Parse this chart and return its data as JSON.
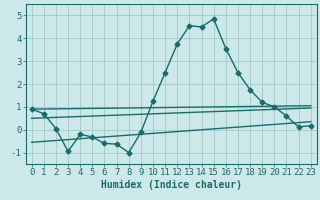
{
  "xlabel": "Humidex (Indice chaleur)",
  "bg_color": "#cce8e8",
  "grid_color": "#aacccc",
  "line_color": "#1a6b6b",
  "xlim": [
    -0.5,
    23.5
  ],
  "ylim": [
    -1.5,
    5.5
  ],
  "xticks": [
    0,
    1,
    2,
    3,
    4,
    5,
    6,
    7,
    8,
    9,
    10,
    11,
    12,
    13,
    14,
    15,
    16,
    17,
    18,
    19,
    20,
    21,
    22,
    23
  ],
  "yticks": [
    -1,
    0,
    1,
    2,
    3,
    4,
    5
  ],
  "main_x": [
    0,
    1,
    2,
    3,
    4,
    5,
    6,
    7,
    8,
    9,
    10,
    11,
    12,
    13,
    14,
    15,
    16,
    17,
    18,
    19,
    20,
    21,
    22,
    23
  ],
  "main_y": [
    0.9,
    0.7,
    0.05,
    -0.95,
    -0.2,
    -0.32,
    -0.6,
    -0.63,
    -1.0,
    -0.12,
    1.25,
    2.5,
    3.75,
    4.55,
    4.5,
    4.85,
    3.55,
    2.5,
    1.75,
    1.2,
    1.0,
    0.6,
    0.12,
    0.18
  ],
  "line1_x": [
    0,
    23
  ],
  "line1_y": [
    0.9,
    1.05
  ],
  "line2_x": [
    0,
    23
  ],
  "line2_y": [
    0.5,
    0.95
  ],
  "line3_x": [
    0,
    23
  ],
  "line3_y": [
    -0.55,
    0.35
  ],
  "marker_size": 2.5,
  "line_width": 1.0,
  "tick_fontsize": 6.5,
  "xlabel_fontsize": 7
}
